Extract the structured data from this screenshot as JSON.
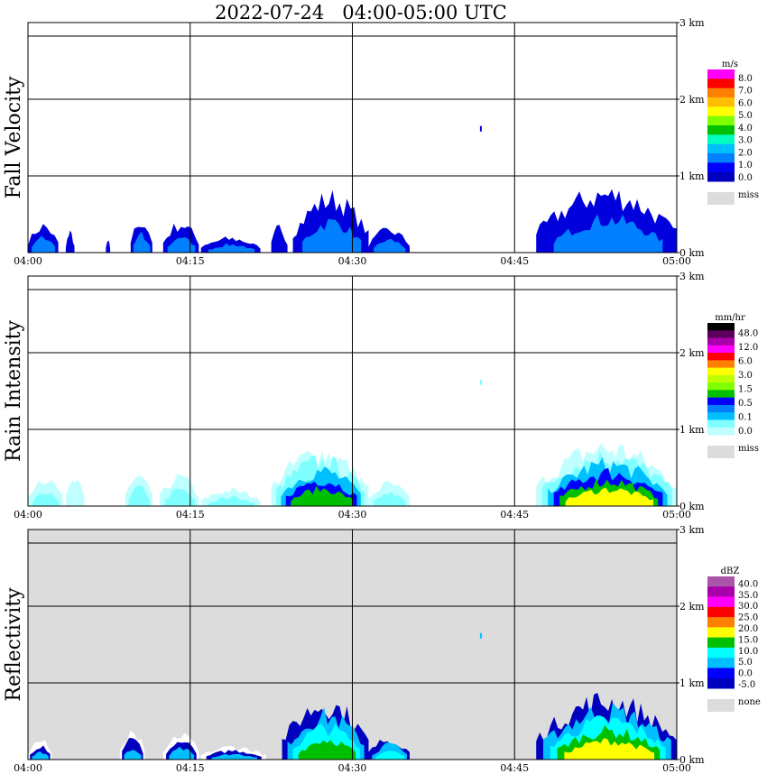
{
  "title": "2022-07-24   04:00-05:00 UTC",
  "chart_data": [
    {
      "type": "heatmap",
      "ylabel": "Fall Velocity",
      "x_ticks": [
        "04:00",
        "04:15",
        "04:30",
        "04:45",
        "05:00"
      ],
      "y_ticks": [
        "0 km",
        "1 km",
        "2 km",
        "3 km"
      ],
      "xlim": [
        "04:00",
        "05:00"
      ],
      "ylim_km": [
        0,
        3.0
      ],
      "grid": true,
      "colorbar": {
        "unit": "m/s",
        "labels": [
          "8.0",
          "7.0",
          "6.0",
          "5.0",
          "4.0",
          "3.0",
          "2.0",
          "1.0",
          "0.0"
        ],
        "colors": [
          "#ff00ff",
          "#ff0000",
          "#ff7f00",
          "#ffbf00",
          "#ffff00",
          "#7fff00",
          "#00bf00",
          "#00ffbf",
          "#00bfff",
          "#007fff",
          "#0000ff",
          "#0000bf"
        ],
        "missing_label": "miss",
        "missing_color": "#dcdcdc"
      },
      "background": "#ffffff"
    },
    {
      "type": "heatmap",
      "ylabel": "Rain Intensity",
      "x_ticks": [
        "04:00",
        "04:15",
        "04:30",
        "04:45",
        "05:00"
      ],
      "y_ticks": [
        "0 km",
        "1 km",
        "2 km",
        "3 km"
      ],
      "xlim": [
        "04:00",
        "05:00"
      ],
      "ylim_km": [
        0,
        3.0
      ],
      "grid": true,
      "colorbar": {
        "unit": "mm/hr",
        "labels": [
          "48.0",
          "12.0",
          "6.0",
          "3.0",
          "1.5",
          "0.5",
          "0.1",
          "0.0"
        ],
        "colors": [
          "#000000",
          "#5a005a",
          "#aa00aa",
          "#ff00ff",
          "#ff0000",
          "#ff7f00",
          "#ffff00",
          "#bfff00",
          "#7fff00",
          "#00bf00",
          "#0000ff",
          "#007fff",
          "#00bfff",
          "#7fffff",
          "#bfffff"
        ],
        "missing_label": "miss",
        "missing_color": "#dcdcdc"
      },
      "background": "#ffffff"
    },
    {
      "type": "heatmap",
      "ylabel": "Reflectivity",
      "x_ticks": [
        "04:00",
        "04:15",
        "04:30",
        "04:45",
        "05:00"
      ],
      "y_ticks": [
        "0 km",
        "1 km",
        "2 km",
        "3 km"
      ],
      "xlim": [
        "04:00",
        "05:00"
      ],
      "ylim_km": [
        0,
        3.0
      ],
      "grid": true,
      "colorbar": {
        "unit": "dBZ",
        "labels": [
          "40.0",
          "35.0",
          "30.0",
          "25.0",
          "20.0",
          "15.0",
          "10.0",
          "5.0",
          "0.0",
          "-5.0"
        ],
        "colors": [
          "#aa55aa",
          "#aa00aa",
          "#ff00ff",
          "#ff0000",
          "#ff7f00",
          "#ffff00",
          "#00bf00",
          "#00ffff",
          "#00bfff",
          "#0000ff",
          "#0000bf"
        ],
        "missing_label": "none",
        "missing_color": "#dcdcdc"
      },
      "background": "#dcdcdc"
    }
  ]
}
